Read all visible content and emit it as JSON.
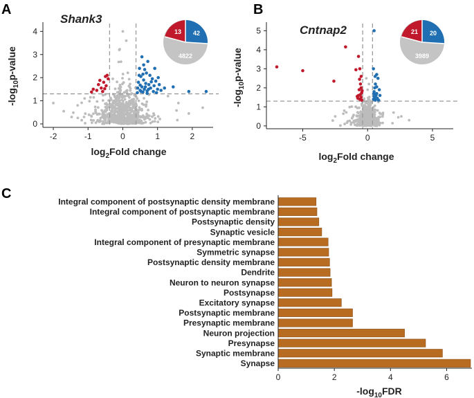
{
  "panels": {
    "a": "A",
    "b": "B",
    "c": "C"
  },
  "colors": {
    "up": "#1f6fb2",
    "down": "#c0192b",
    "ns": "#bcbcbc",
    "bar": "#b86c22",
    "bar_edge": "#8a4e14",
    "guide": "#9a9a9a"
  },
  "chart_data": [
    {
      "id": "shank3",
      "type": "scatter",
      "title": "Shank3",
      "xlabel": "log₂Fold change",
      "xlabel_main": "log",
      "xlabel_sub": "2",
      "xlabel_rest": "Fold change",
      "ylabel": "-log₁₀p-value",
      "ylabel_pre": "-log",
      "ylabel_sub": "10",
      "ylabel_rest": "p-value",
      "xlim": [
        -2.3,
        2.6
      ],
      "ylim": [
        -0.15,
        4.4
      ],
      "xticks": [
        -2,
        -1,
        0,
        1,
        2
      ],
      "yticks": [
        0,
        1,
        2,
        3,
        4
      ],
      "fc_thresholds": [
        -0.38,
        0.38
      ],
      "p_threshold": 1.3,
      "summary": {
        "up": "42",
        "down": "13",
        "ns": "4822"
      },
      "up_points": [
        [
          0.42,
          1.35
        ],
        [
          0.5,
          1.45
        ],
        [
          0.55,
          1.6
        ],
        [
          0.62,
          1.5
        ],
        [
          0.7,
          1.42
        ],
        [
          0.8,
          1.55
        ],
        [
          0.45,
          1.8
        ],
        [
          0.6,
          1.9
        ],
        [
          0.75,
          1.7
        ],
        [
          0.9,
          1.65
        ],
        [
          0.52,
          2.05
        ],
        [
          0.68,
          2.2
        ],
        [
          0.85,
          1.95
        ],
        [
          1.0,
          1.5
        ],
        [
          0.48,
          2.4
        ],
        [
          0.6,
          2.55
        ],
        [
          0.55,
          2.9
        ],
        [
          0.72,
          2.7
        ],
        [
          0.95,
          1.85
        ],
        [
          1.1,
          1.45
        ],
        [
          0.43,
          1.55
        ],
        [
          0.58,
          1.38
        ],
        [
          0.66,
          1.75
        ],
        [
          0.78,
          2.1
        ],
        [
          0.88,
          1.4
        ],
        [
          1.05,
          1.7
        ],
        [
          0.5,
          1.68
        ],
        [
          0.63,
          2.35
        ],
        [
          0.7,
          1.32
        ],
        [
          0.82,
          1.82
        ],
        [
          0.92,
          2.4
        ],
        [
          1.2,
          1.55
        ],
        [
          1.45,
          1.6
        ],
        [
          1.9,
          1.4
        ],
        [
          2.4,
          1.4
        ],
        [
          0.47,
          2.1
        ],
        [
          0.53,
          1.4
        ],
        [
          0.74,
          1.5
        ],
        [
          0.97,
          1.35
        ],
        [
          1.02,
          2.0
        ],
        [
          0.65,
          1.6
        ],
        [
          0.58,
          2.15
        ]
      ],
      "down_points": [
        [
          -0.45,
          2.1
        ],
        [
          -0.5,
          2.05
        ],
        [
          -0.42,
          1.95
        ],
        [
          -0.55,
          1.8
        ],
        [
          -0.48,
          1.65
        ],
        [
          -0.62,
          1.55
        ],
        [
          -0.7,
          1.7
        ],
        [
          -0.75,
          1.45
        ],
        [
          -0.58,
          1.4
        ],
        [
          -0.85,
          1.5
        ],
        [
          -0.52,
          1.52
        ],
        [
          -0.66,
          1.88
        ],
        [
          -0.9,
          1.38
        ]
      ]
    },
    {
      "id": "cntnap2",
      "type": "scatter",
      "title": "Cntnap2",
      "xlabel": "log₂Fold change",
      "xlabel_main": "log",
      "xlabel_sub": "2",
      "xlabel_rest": "Fold change",
      "ylabel": "-log₁₀p-value",
      "ylabel_pre": "-log",
      "ylabel_sub": "10",
      "ylabel_rest": "p-value",
      "xlim": [
        -7.8,
        6.6
      ],
      "ylim": [
        -0.15,
        5.45
      ],
      "xticks": [
        -5,
        0,
        5
      ],
      "yticks": [
        0,
        1,
        2,
        3,
        4,
        5
      ],
      "fc_thresholds": [
        -0.38,
        0.38
      ],
      "p_threshold": 1.3,
      "summary": {
        "up": "20",
        "down": "21",
        "ns": "3989"
      },
      "up_points": [
        [
          0.5,
          5.0
        ],
        [
          0.45,
          3.0
        ],
        [
          0.7,
          2.7
        ],
        [
          0.8,
          2.5
        ],
        [
          0.6,
          2.2
        ],
        [
          0.55,
          2.0
        ],
        [
          0.9,
          1.9
        ],
        [
          0.5,
          1.8
        ],
        [
          0.7,
          1.7
        ],
        [
          0.65,
          1.6
        ],
        [
          0.55,
          1.5
        ],
        [
          0.75,
          1.45
        ],
        [
          0.45,
          1.4
        ],
        [
          0.6,
          1.35
        ],
        [
          0.85,
          1.35
        ],
        [
          0.5,
          1.55
        ],
        [
          0.95,
          1.6
        ],
        [
          0.58,
          2.6
        ],
        [
          0.7,
          2.05
        ],
        [
          0.48,
          1.7
        ]
      ],
      "down_points": [
        [
          -7.0,
          3.1
        ],
        [
          -5.0,
          2.9
        ],
        [
          -2.6,
          2.35
        ],
        [
          -1.7,
          4.15
        ],
        [
          -0.7,
          3.65
        ],
        [
          -0.6,
          3.0
        ],
        [
          -0.9,
          2.95
        ],
        [
          -0.5,
          2.6
        ],
        [
          -0.55,
          2.2
        ],
        [
          -0.65,
          1.9
        ],
        [
          -0.45,
          1.75
        ],
        [
          -0.7,
          1.6
        ],
        [
          -0.5,
          1.5
        ],
        [
          -0.6,
          1.4
        ],
        [
          -0.45,
          1.35
        ],
        [
          -0.8,
          1.55
        ],
        [
          -0.55,
          1.65
        ],
        [
          -0.5,
          2.0
        ],
        [
          -0.75,
          1.45
        ],
        [
          -0.42,
          1.85
        ],
        [
          -0.62,
          2.45
        ]
      ]
    },
    {
      "id": "go-terms",
      "type": "bar",
      "orientation": "horizontal",
      "xlabel": "-log₁₀FDR",
      "xlabel_pre": "-log",
      "xlabel_sub": "10",
      "xlabel_rest": "FDR",
      "xlim": [
        0,
        6.9
      ],
      "xticks": [
        0,
        2,
        4,
        6
      ],
      "categories": [
        "Integral component of postsynaptic density membrane",
        "Integral component of postsynaptic membrane",
        "Postsynaptic density",
        "Synaptic vesicle",
        "Integral component of presynaptic membrane",
        "Symmetric synapse",
        "Postsynaptic density membrane",
        "Dendrite",
        "Neuron to neuron synapse",
        "Postsynapse",
        "Excitatory synapse",
        "Postsynaptic membrane",
        "Presynaptic membrane",
        "Neuron projection",
        "Presynapse",
        "Synaptic membrane",
        "Synapse"
      ],
      "values": [
        1.35,
        1.38,
        1.45,
        1.55,
        1.78,
        1.8,
        1.83,
        1.85,
        1.9,
        1.92,
        2.25,
        2.65,
        2.65,
        4.5,
        5.25,
        5.85,
        6.85
      ]
    }
  ]
}
